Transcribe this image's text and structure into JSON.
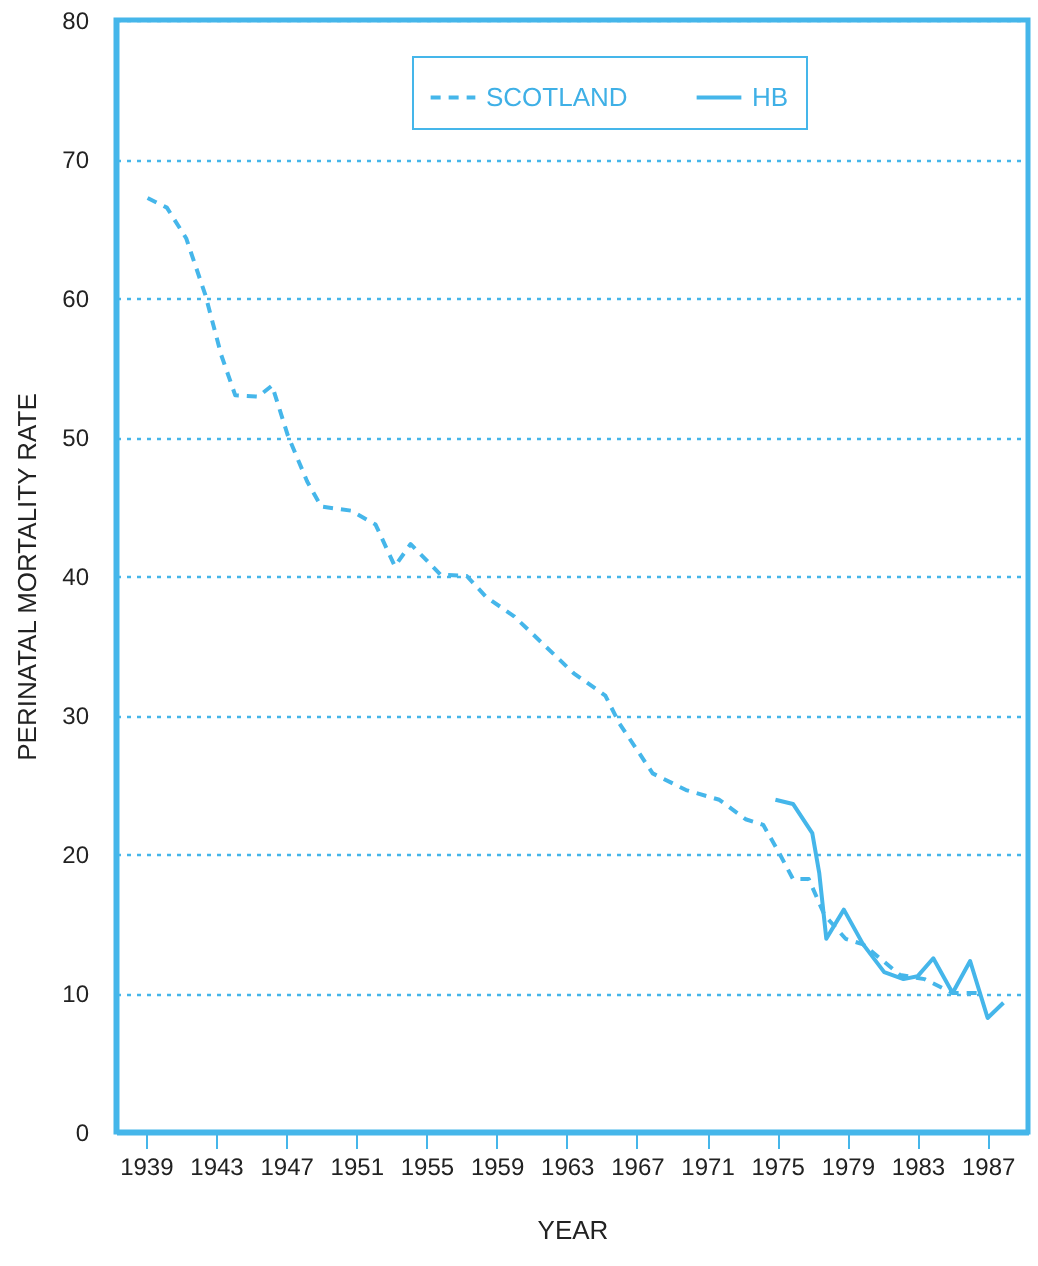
{
  "chart_data": {
    "type": "line",
    "xlabel": "YEAR",
    "ylabel": "PERINATAL MORTALITY RATE",
    "xlim": [
      1937.3,
      1989.3
    ],
    "ylim": [
      0,
      80
    ],
    "xticks": [
      1939,
      1943,
      1947,
      1951,
      1955,
      1959,
      1963,
      1967,
      1971,
      1975,
      1979,
      1983,
      1987
    ],
    "yticks": [
      0,
      10,
      20,
      30,
      40,
      50,
      60,
      70,
      80
    ],
    "grid": "y",
    "legend": "top",
    "series": [
      {
        "name": "SCOTLAND",
        "color": "#45b6ea",
        "line_style": "dashed",
        "x": [
          1939.1,
          1940.2,
          1941.3,
          1942.4,
          1943.3,
          1944.1,
          1945.4,
          1946.2,
          1947.1,
          1948.2,
          1949.0,
          1950.7,
          1952.1,
          1953.2,
          1954.1,
          1955.8,
          1957.3,
          1958.4,
          1960.0,
          1963.4,
          1965.2,
          1966.0,
          1967.9,
          1969.8,
          1971.7,
          1973.2,
          1974.2,
          1975.1,
          1975.9,
          1976.8,
          1977.7,
          1978.9,
          1979.9,
          1982.0,
          1983.4,
          1985.0,
          1986.5
        ],
        "values": [
          67.2,
          66.5,
          64.3,
          60.2,
          55.9,
          53.0,
          52.9,
          53.7,
          50.1,
          46.8,
          45.0,
          44.7,
          43.7,
          40.7,
          42.3,
          40.1,
          40.0,
          38.5,
          37.1,
          33.0,
          31.4,
          29.4,
          25.8,
          24.6,
          23.9,
          22.5,
          22.1,
          20.1,
          18.2,
          18.2,
          15.6,
          13.9,
          13.5,
          11.3,
          11.0,
          10.0,
          10.0
        ]
      },
      {
        "name": "HB",
        "color": "#45b6ea",
        "line_style": "solid",
        "x": [
          1974.9,
          1975.9,
          1977.0,
          1977.4,
          1977.8,
          1978.8,
          1979.9,
          1981.1,
          1982.2,
          1983.0,
          1983.9,
          1985.0,
          1986.0,
          1987.0,
          1987.9
        ],
        "values": [
          23.9,
          23.6,
          21.5,
          18.6,
          13.9,
          16.0,
          13.5,
          11.5,
          11.0,
          11.2,
          12.5,
          10.0,
          12.3,
          8.2,
          9.3
        ]
      }
    ]
  }
}
